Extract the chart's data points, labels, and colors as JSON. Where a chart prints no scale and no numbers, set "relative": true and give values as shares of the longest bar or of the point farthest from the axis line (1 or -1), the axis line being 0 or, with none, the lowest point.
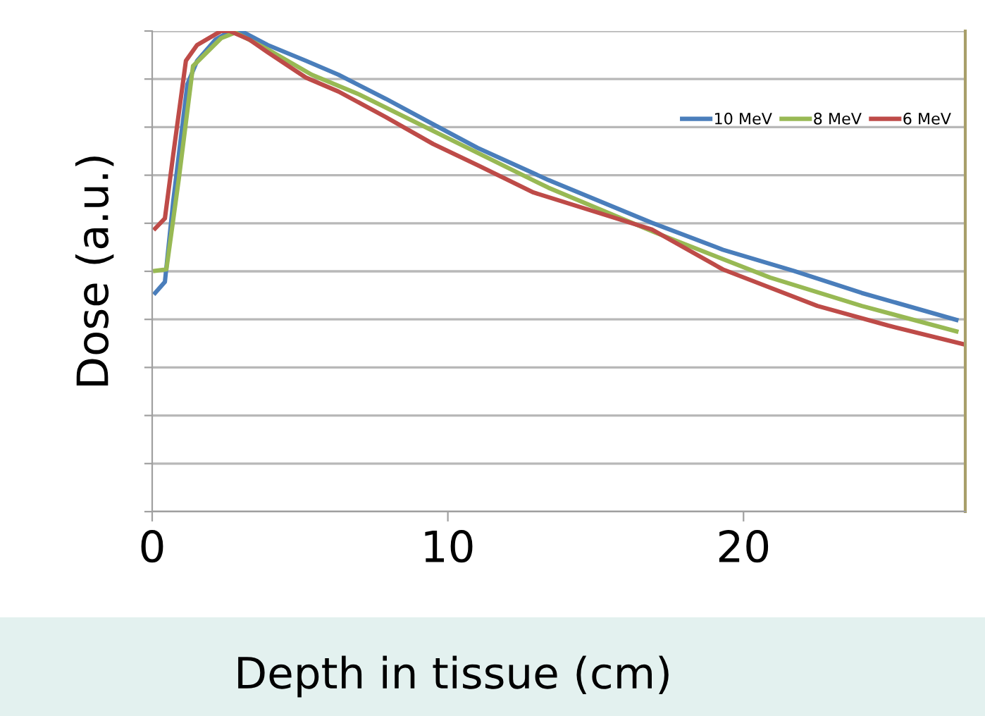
{
  "chart_data": {
    "type": "line",
    "xlabel": "Depth in tissue (cm)",
    "ylabel": "Dose (a.u.)",
    "relative": true,
    "xlim": [
      0,
      27.5
    ],
    "xticks": [
      0,
      10,
      20
    ],
    "grid": "y",
    "legend": "top right",
    "marker": "none",
    "line_style": "solid",
    "series": [
      {
        "name": "10 MeV",
        "color": "#4a7ebb",
        "x": [
          0.1,
          0.43,
          0.71,
          1.19,
          1.52,
          2.14,
          2.57,
          3.1,
          3.9,
          5.2,
          6.3,
          7.9,
          9.5,
          11.0,
          13.4,
          16.9,
          19.3,
          21.7,
          24.0,
          27.2
        ],
        "values": [
          0.455,
          0.478,
          0.645,
          0.889,
          0.938,
          0.982,
          0.997,
          0.997,
          0.971,
          0.938,
          0.909,
          0.859,
          0.806,
          0.757,
          0.69,
          0.601,
          0.545,
          0.501,
          0.455,
          0.399
        ]
      },
      {
        "name": "8 MeV",
        "color": "#98b954",
        "x": [
          0.1,
          0.48,
          0.9,
          1.38,
          2.33,
          2.81,
          3.9,
          5.4,
          7.0,
          9.5,
          13.4,
          17.0,
          20.9,
          24.0,
          27.2
        ],
        "values": [
          0.501,
          0.504,
          0.692,
          0.927,
          0.985,
          0.997,
          0.962,
          0.909,
          0.868,
          0.792,
          0.674,
          0.581,
          0.487,
          0.428,
          0.375
        ]
      },
      {
        "name": "6 MeV",
        "color": "#be4b48",
        "x": [
          0.1,
          0.43,
          0.71,
          1.14,
          1.52,
          2.33,
          2.62,
          3.29,
          3.9,
          5.2,
          6.3,
          7.9,
          9.5,
          11.0,
          12.9,
          16.9,
          19.3,
          22.5,
          24.9,
          27.4
        ],
        "values": [
          0.589,
          0.61,
          0.742,
          0.938,
          0.971,
          1.0,
          1.0,
          0.982,
          0.956,
          0.903,
          0.874,
          0.821,
          0.765,
          0.721,
          0.664,
          0.587,
          0.504,
          0.428,
          0.387,
          0.349
        ]
      }
    ]
  }
}
